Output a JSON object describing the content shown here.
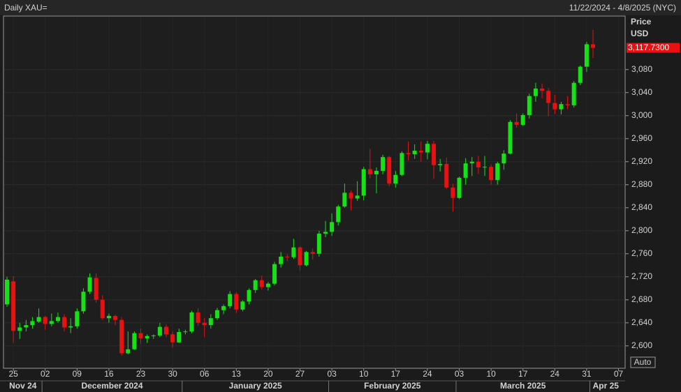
{
  "chart_data": {
    "type": "candlestick",
    "title": "Daily XAU=",
    "subtitle": "11/22/2024 - 4/8/2025 (NYC)",
    "y_axis_label": [
      "Price",
      "USD"
    ],
    "last_price_label": "3,117.7300",
    "scale_button": "Auto",
    "up_color": "#16e016",
    "down_color": "#e81010",
    "grid": true,
    "ylim": [
      2561,
      3173
    ],
    "yticks": [
      {
        "value": 2600,
        "label": "2,600"
      },
      {
        "value": 2640,
        "label": "2,640"
      },
      {
        "value": 2680,
        "label": "2,680"
      },
      {
        "value": 2720,
        "label": "2,720"
      },
      {
        "value": 2760,
        "label": "2,760"
      },
      {
        "value": 2800,
        "label": "2,800"
      },
      {
        "value": 2840,
        "label": "2,840"
      },
      {
        "value": 2880,
        "label": "2,880"
      },
      {
        "value": 2920,
        "label": "2,920"
      },
      {
        "value": 2960,
        "label": "2,960"
      },
      {
        "value": 3000,
        "label": "3,000"
      },
      {
        "value": 3040,
        "label": "3,040"
      },
      {
        "value": 3080,
        "label": "3,080"
      }
    ],
    "categories": [
      null,
      "25",
      null,
      null,
      null,
      null,
      "02",
      null,
      null,
      null,
      null,
      "09",
      null,
      null,
      null,
      null,
      "16",
      null,
      null,
      null,
      null,
      "23",
      null,
      null,
      null,
      null,
      "30",
      null,
      null,
      null,
      null,
      "06",
      null,
      null,
      null,
      null,
      "13",
      null,
      null,
      null,
      null,
      "20",
      null,
      null,
      null,
      null,
      "27",
      null,
      null,
      null,
      null,
      "03",
      null,
      null,
      null,
      null,
      "10",
      null,
      null,
      null,
      null,
      "17",
      null,
      null,
      null,
      null,
      "24",
      null,
      null,
      null,
      null,
      "03",
      null,
      null,
      null,
      null,
      "10",
      null,
      null,
      null,
      null,
      "17",
      null,
      null,
      null,
      null,
      "24",
      null,
      null,
      null,
      null,
      "31",
      null,
      null,
      null,
      null,
      "07"
    ],
    "x_groups": [
      {
        "label": "Nov 24",
        "count": 6
      },
      {
        "label": "December 2024",
        "count": 22
      },
      {
        "label": "January 2025",
        "count": 23
      },
      {
        "label": "February 2025",
        "count": 20
      },
      {
        "label": "March 2025",
        "count": 21
      },
      {
        "label": "Apr 25",
        "count": 5
      }
    ],
    "open": [
      2672,
      2712,
      2626,
      2632,
      2636,
      2642,
      2650,
      2638,
      2643,
      2650,
      2632,
      2634,
      2660,
      2694,
      2718,
      2680,
      2648,
      2652,
      2645,
      2587,
      2594,
      2622,
      2613,
      2617,
      2618,
      2633,
      2620,
      2606,
      2624,
      2625,
      2658,
      2640,
      2636,
      2648,
      2662,
      2669,
      2690,
      2663,
      2677,
      2697,
      2714,
      2702,
      2708,
      2742,
      2755,
      2754,
      2771,
      2740,
      2763,
      2760,
      2795,
      2798,
      2815,
      2842,
      2866,
      2856,
      2861,
      2907,
      2898,
      2904,
      2928,
      2882,
      2897,
      2935,
      2933,
      2939,
      2936,
      2951,
      2914,
      2916,
      2875,
      2857,
      2892,
      2917,
      2920,
      2910,
      2911,
      2888,
      2917,
      2934,
      2989,
      2984,
      3001,
      3034,
      3047,
      3043,
      3022,
      3011,
      3020,
      3018,
      3057,
      3085,
      3124,
      null,
      null,
      null,
      null
    ],
    "high": [
      2720,
      2721,
      2640,
      2645,
      2650,
      2665,
      2652,
      2656,
      2658,
      2655,
      2648,
      2665,
      2700,
      2726,
      2726,
      2688,
      2656,
      2654,
      2650,
      2625,
      2625,
      2630,
      2620,
      2620,
      2640,
      2637,
      2625,
      2630,
      2628,
      2661,
      2665,
      2648,
      2655,
      2666,
      2672,
      2695,
      2693,
      2679,
      2700,
      2716,
      2722,
      2711,
      2746,
      2763,
      2759,
      2786,
      2773,
      2765,
      2769,
      2800,
      2817,
      2830,
      2845,
      2882,
      2870,
      2886,
      2911,
      2942,
      2910,
      2932,
      2930,
      2904,
      2938,
      2955,
      2950,
      2955,
      2956,
      2956,
      2925,
      2927,
      2882,
      2894,
      2926,
      2928,
      2930,
      2930,
      2915,
      2920,
      2940,
      2992,
      3004,
      3004,
      3038,
      3057,
      3056,
      3048,
      3036,
      3024,
      3034,
      3060,
      3087,
      3128,
      3149,
      null,
      null,
      null,
      null
    ],
    "low": [
      2668,
      2605,
      2612,
      2625,
      2630,
      2640,
      2628,
      2634,
      2640,
      2625,
      2622,
      2630,
      2656,
      2690,
      2675,
      2645,
      2640,
      2636,
      2583,
      2585,
      2593,
      2603,
      2605,
      2612,
      2615,
      2615,
      2597,
      2605,
      2620,
      2622,
      2635,
      2615,
      2630,
      2645,
      2655,
      2665,
      2657,
      2660,
      2672,
      2692,
      2698,
      2696,
      2705,
      2736,
      2747,
      2751,
      2731,
      2738,
      2750,
      2755,
      2789,
      2791,
      2809,
      2840,
      2835,
      2852,
      2853,
      2891,
      2865,
      2898,
      2877,
      2875,
      2895,
      2922,
      2925,
      2920,
      2924,
      2890,
      2903,
      2873,
      2833,
      2855,
      2880,
      2895,
      2898,
      2895,
      2880,
      2880,
      2906,
      2933,
      2979,
      2982,
      2995,
      3024,
      3030,
      2999,
      3003,
      3002,
      3011,
      3014,
      3053,
      3076,
      3100,
      null,
      null,
      null,
      null
    ],
    "close": [
      2715,
      2626,
      2632,
      2636,
      2643,
      2650,
      2638,
      2643,
      2650,
      2632,
      2634,
      2660,
      2694,
      2719,
      2680,
      2648,
      2652,
      2645,
      2587,
      2594,
      2622,
      2613,
      2617,
      2618,
      2633,
      2620,
      2606,
      2624,
      2625,
      2658,
      2640,
      2636,
      2648,
      2662,
      2669,
      2690,
      2663,
      2677,
      2697,
      2714,
      2702,
      2708,
      2742,
      2755,
      2754,
      2771,
      2740,
      2763,
      2760,
      2795,
      2798,
      2815,
      2842,
      2866,
      2856,
      2861,
      2907,
      2898,
      2904,
      2928,
      2882,
      2897,
      2935,
      2933,
      2939,
      2936,
      2951,
      2914,
      2916,
      2875,
      2857,
      2892,
      2917,
      2920,
      2910,
      2911,
      2888,
      2917,
      2934,
      2989,
      2984,
      3001,
      3034,
      3047,
      3043,
      3022,
      3011,
      3020,
      3018,
      3057,
      3085,
      3124,
      3117.73,
      null,
      null,
      null,
      null
    ]
  }
}
